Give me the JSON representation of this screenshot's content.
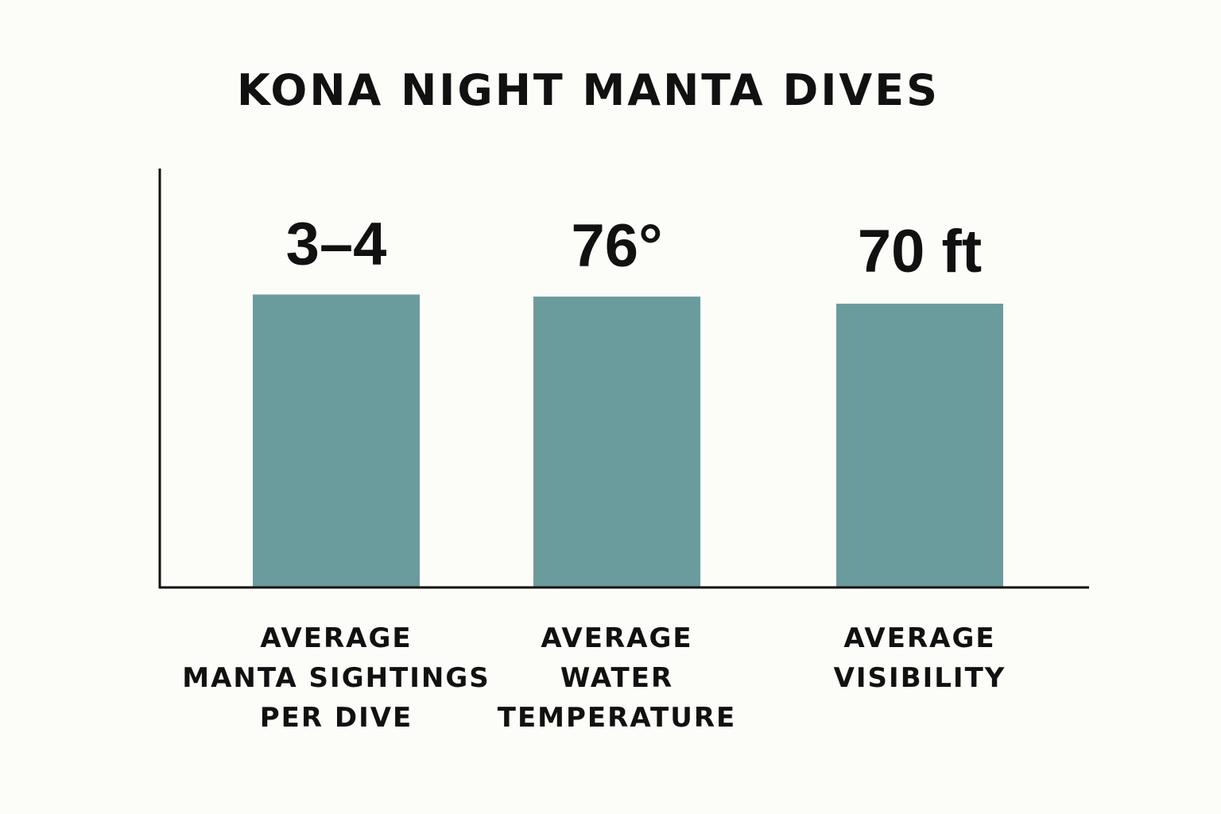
{
  "chart_data": {
    "type": "bar",
    "title": "KONA NIGHT MANTA DIVES",
    "categories": [
      [
        "AVERAGE",
        "MANTA SIGHTINGS",
        "PER DIVE"
      ],
      [
        "AVERAGE",
        "WATER",
        "TEMPERATURE"
      ],
      [
        "AVERAGE",
        "VISIBILITY"
      ]
    ],
    "value_labels": [
      "3–4",
      "76°",
      "70 ft"
    ],
    "bar_height_fraction": [
      0.7,
      0.695,
      0.678
    ],
    "bar_color": "#6a9b9d",
    "axis_color": "#111111",
    "grid": false,
    "legend": "none"
  }
}
